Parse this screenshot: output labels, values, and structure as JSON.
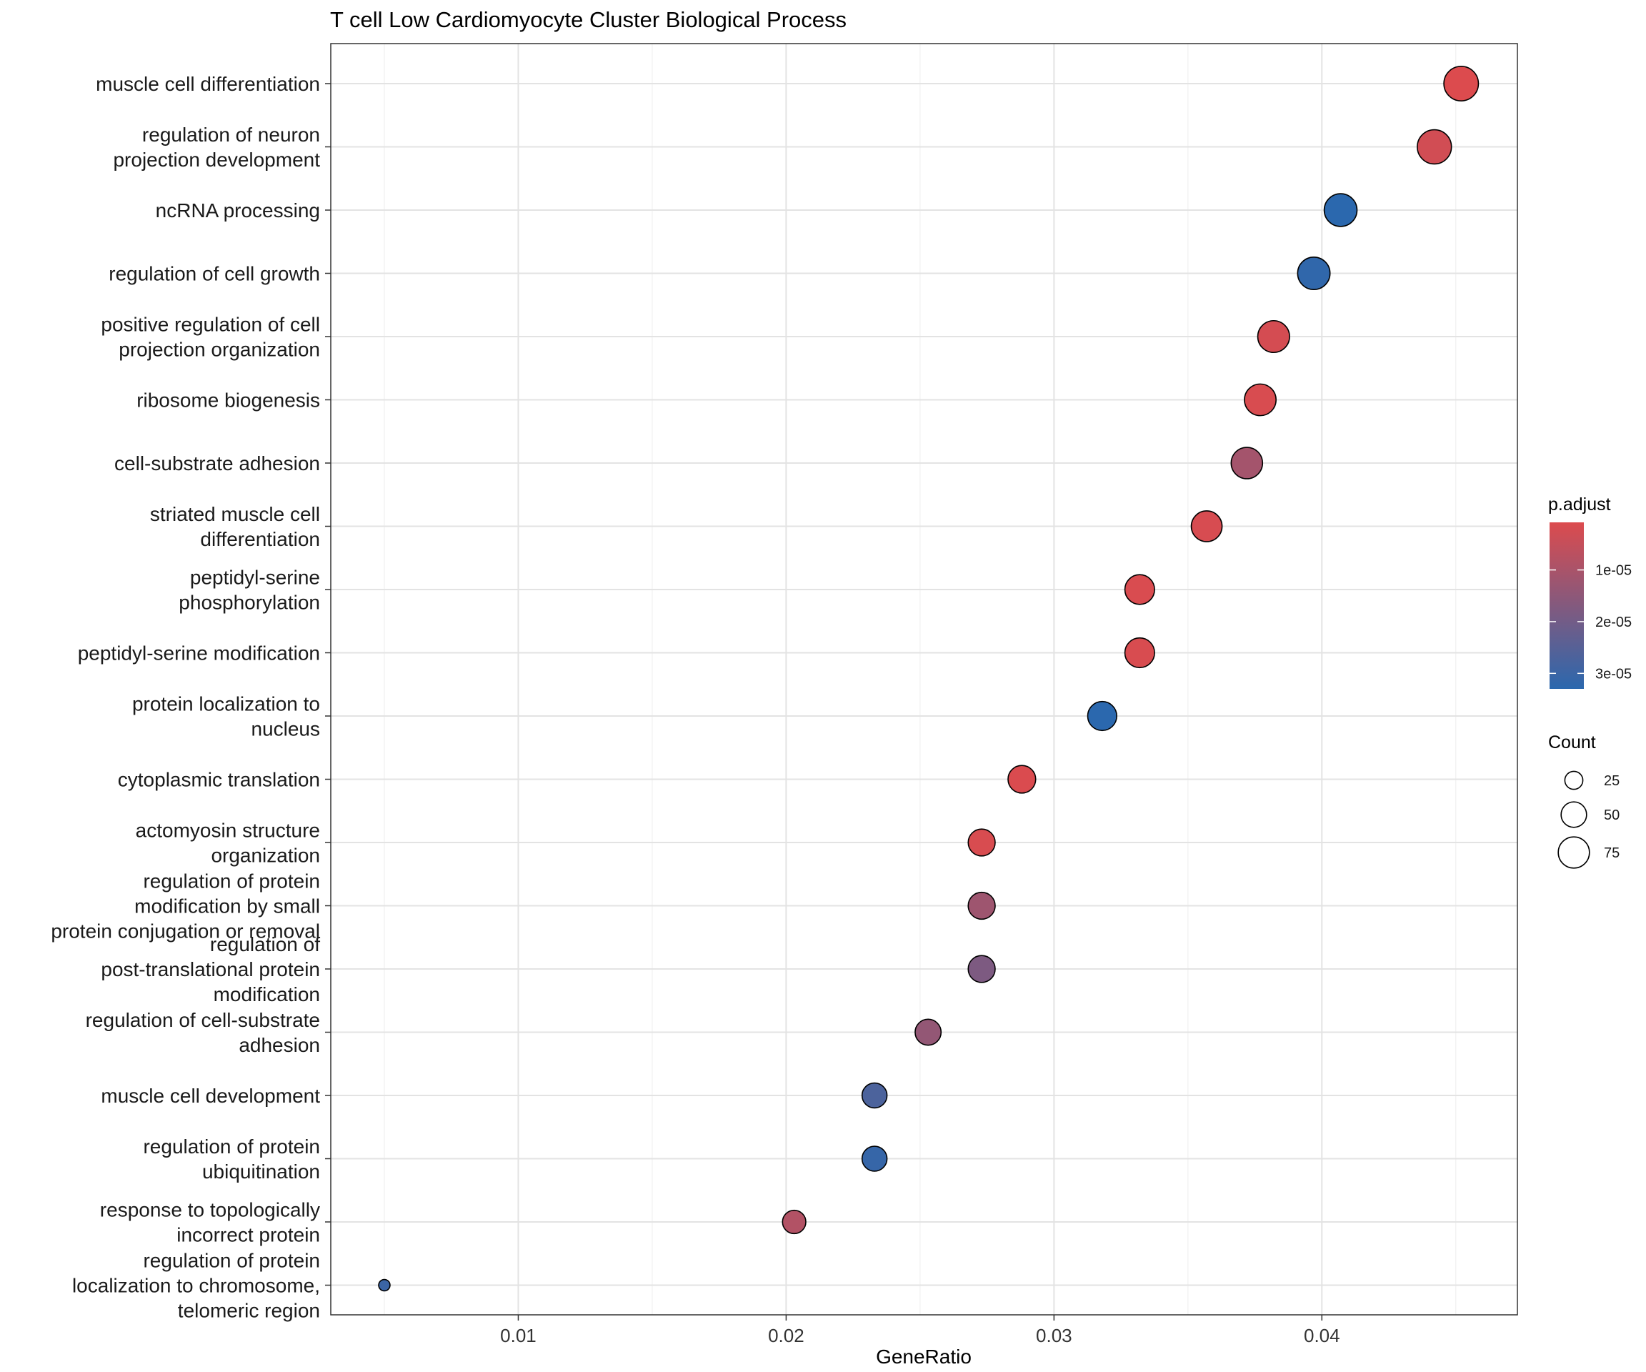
{
  "chart_data": {
    "type": "scatter",
    "title": "T cell Low Cardiomyocyte Cluster Biological Process",
    "xlabel": "GeneRatio",
    "ylabel": "",
    "xlim": [
      0.003,
      0.0473
    ],
    "x_ticks": [
      0.01,
      0.02,
      0.03,
      0.04
    ],
    "x_tick_labels": [
      "0.01",
      "0.02",
      "0.03",
      "0.04"
    ],
    "grid": true,
    "terms": [
      {
        "label": [
          "muscle cell differentiation"
        ],
        "x": 0.0452,
        "count": 92,
        "p_adjust": 8e-07
      },
      {
        "label": [
          "regulation of neuron",
          "projection development"
        ],
        "x": 0.0442,
        "count": 90,
        "p_adjust": 2.8e-06
      },
      {
        "label": [
          "ncRNA processing"
        ],
        "x": 0.0407,
        "count": 83,
        "p_adjust": 3.3e-05
      },
      {
        "label": [
          "regulation of cell growth"
        ],
        "x": 0.0397,
        "count": 81,
        "p_adjust": 3.2e-05
      },
      {
        "label": [
          "positive regulation of cell",
          "projection organization"
        ],
        "x": 0.0382,
        "count": 78,
        "p_adjust": 2.2e-06
      },
      {
        "label": [
          "ribosome biogenesis"
        ],
        "x": 0.0377,
        "count": 77,
        "p_adjust": 1.5e-06
      },
      {
        "label": [
          "cell-substrate adhesion"
        ],
        "x": 0.0372,
        "count": 76,
        "p_adjust": 1.1e-05
      },
      {
        "label": [
          "striated muscle cell",
          "differentiation"
        ],
        "x": 0.0357,
        "count": 73,
        "p_adjust": 1.8e-06
      },
      {
        "label": [
          "peptidyl-serine",
          "phosphorylation"
        ],
        "x": 0.0332,
        "count": 68,
        "p_adjust": 1.4e-06
      },
      {
        "label": [
          "peptidyl-serine modification"
        ],
        "x": 0.0332,
        "count": 68,
        "p_adjust": 1.5e-06
      },
      {
        "label": [
          "protein localization to",
          "nucleus"
        ],
        "x": 0.0318,
        "count": 65,
        "p_adjust": 3.3e-05
      },
      {
        "label": [
          "cytoplasmic translation"
        ],
        "x": 0.0288,
        "count": 59,
        "p_adjust": 1.2e-06
      },
      {
        "label": [
          "actomyosin structure",
          "organization"
        ],
        "x": 0.0273,
        "count": 56,
        "p_adjust": 1.6e-06
      },
      {
        "label": [
          "regulation of protein",
          "modification by small",
          "protein conjugation or removal"
        ],
        "x": 0.0273,
        "count": 56,
        "p_adjust": 1.2e-05
      },
      {
        "label": [
          "regulation of",
          "post-translational protein",
          "modification"
        ],
        "x": 0.0273,
        "count": 56,
        "p_adjust": 1.8e-05
      },
      {
        "label": [
          "regulation of cell-substrate",
          "adhesion"
        ],
        "x": 0.0253,
        "count": 52,
        "p_adjust": 1.4e-05
      },
      {
        "label": [
          "muscle cell development"
        ],
        "x": 0.0233,
        "count": 48,
        "p_adjust": 2.7e-05
      },
      {
        "label": [
          "regulation of protein",
          "ubiquitination"
        ],
        "x": 0.0233,
        "count": 48,
        "p_adjust": 3.1e-05
      },
      {
        "label": [
          "response to topologically",
          "incorrect protein"
        ],
        "x": 0.0203,
        "count": 42,
        "p_adjust": 8.5e-06
      },
      {
        "label": [
          "regulation of protein",
          "localization to chromosome,",
          "telomeric region"
        ],
        "x": 0.005,
        "count": 10,
        "p_adjust": 3e-05
      }
    ],
    "color_legend": {
      "title": "p.adjust",
      "labels": [
        "1e-05",
        "2e-05",
        "3e-05"
      ],
      "values": [
        1e-05,
        2e-05,
        3e-05
      ],
      "range": [
        8e-07,
        3.3e-05
      ],
      "low_color": "#DC4B4E",
      "high_color": "#2B68AE"
    },
    "size_legend": {
      "title": "Count",
      "values": [
        25,
        50,
        75
      ],
      "labels": [
        "25",
        "50",
        "75"
      ]
    }
  }
}
